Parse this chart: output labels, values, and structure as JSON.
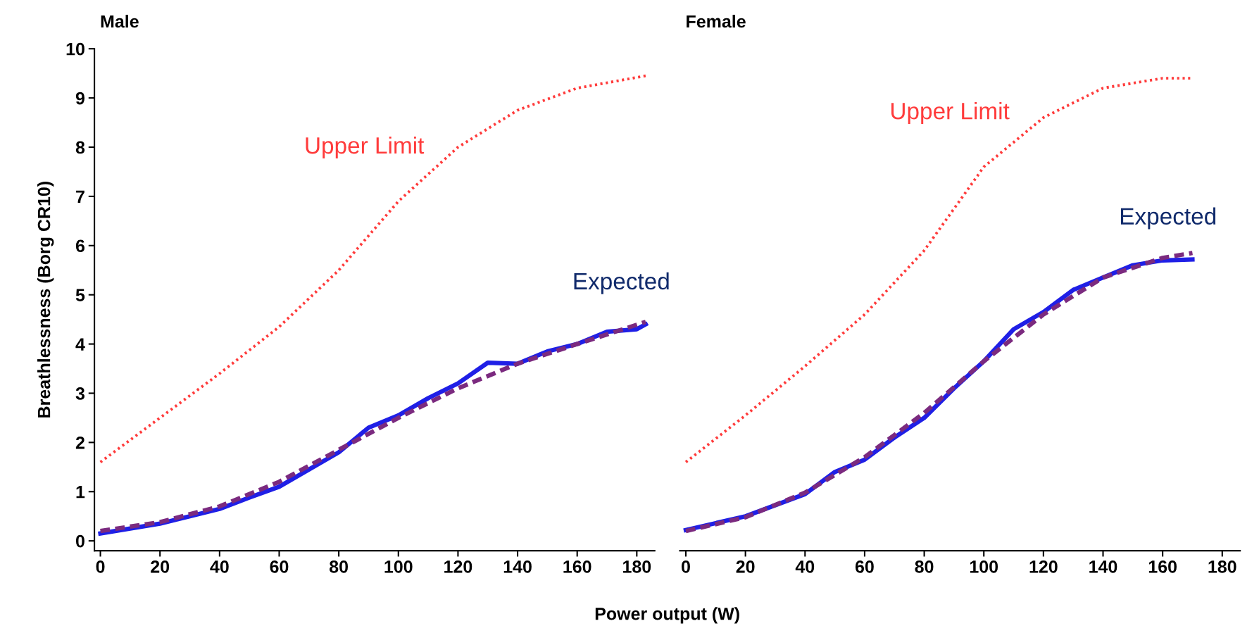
{
  "chart_data": [
    {
      "type": "line",
      "title": "Male",
      "xlabel": "Power output (W)",
      "ylabel": "Breathlessness (Borg CR10)",
      "xlim": [
        -2,
        186
      ],
      "ylim": [
        -0.2,
        10
      ],
      "xticks": [
        0,
        20,
        40,
        60,
        80,
        100,
        120,
        140,
        160,
        180
      ],
      "yticks": [
        0,
        1,
        2,
        3,
        4,
        5,
        6,
        7,
        8,
        9,
        10
      ],
      "grid": false,
      "series": [
        {
          "name": "Upper Limit",
          "color": "#ff3b3b",
          "line_style": "dotted",
          "x": [
            0,
            20,
            40,
            60,
            80,
            100,
            120,
            140,
            160,
            183
          ],
          "values": [
            1.6,
            2.5,
            3.4,
            4.35,
            5.5,
            6.9,
            8.0,
            8.75,
            9.2,
            9.45
          ]
        },
        {
          "name": "Expected",
          "color": "#1f1fe6",
          "line_style": "solid",
          "x": [
            0,
            10,
            20,
            30,
            40,
            50,
            60,
            70,
            80,
            90,
            100,
            110,
            120,
            130,
            140,
            150,
            160,
            170,
            180,
            183
          ],
          "values": [
            0.15,
            0.25,
            0.35,
            0.5,
            0.65,
            0.88,
            1.1,
            1.45,
            1.8,
            2.3,
            2.55,
            2.9,
            3.2,
            3.62,
            3.6,
            3.85,
            4.0,
            4.25,
            4.3,
            4.4
          ]
        },
        {
          "color": "#7b2a7f",
          "line_style": "dashed",
          "x": [
            0,
            20,
            40,
            60,
            80,
            100,
            120,
            140,
            160,
            183
          ],
          "values": [
            0.2,
            0.38,
            0.7,
            1.2,
            1.85,
            2.5,
            3.1,
            3.6,
            4.0,
            4.45
          ]
        }
      ]
    },
    {
      "type": "line",
      "title": "Female",
      "xlim": [
        -2,
        186
      ],
      "ylim": [
        -0.2,
        10
      ],
      "xticks": [
        0,
        20,
        40,
        60,
        80,
        100,
        120,
        140,
        160,
        180
      ],
      "tick_labels": "x",
      "grid": false,
      "series": [
        {
          "name": "Upper Limit",
          "color": "#ff3b3b",
          "line_style": "dotted",
          "x": [
            0,
            20,
            40,
            60,
            80,
            100,
            120,
            140,
            160,
            170
          ],
          "values": [
            1.6,
            2.55,
            3.55,
            4.6,
            5.9,
            7.6,
            8.6,
            9.2,
            9.4,
            9.4
          ]
        },
        {
          "name": "Expected",
          "color": "#1f1fe6",
          "line_style": "solid",
          "x": [
            0,
            20,
            40,
            50,
            60,
            70,
            80,
            90,
            100,
            110,
            120,
            130,
            140,
            150,
            160,
            170
          ],
          "values": [
            0.22,
            0.5,
            0.95,
            1.4,
            1.65,
            2.1,
            2.5,
            3.1,
            3.65,
            4.3,
            4.65,
            5.1,
            5.35,
            5.6,
            5.7,
            5.72
          ]
        },
        {
          "color": "#7b2a7f",
          "line_style": "dashed",
          "x": [
            0,
            20,
            40,
            60,
            80,
            100,
            120,
            140,
            160,
            170
          ],
          "values": [
            0.2,
            0.48,
            0.98,
            1.7,
            2.6,
            3.65,
            4.6,
            5.35,
            5.75,
            5.85
          ]
        }
      ]
    }
  ]
}
